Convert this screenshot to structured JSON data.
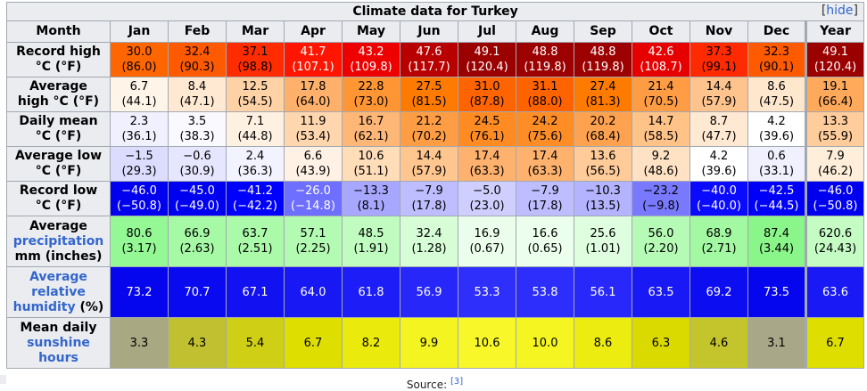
{
  "caption": "Climate data for Turkey",
  "hide_label": "hide",
  "months": [
    "Month",
    "Jan",
    "Feb",
    "Mar",
    "Apr",
    "May",
    "Jun",
    "Jul",
    "Aug",
    "Sep",
    "Oct",
    "Nov",
    "Dec",
    "Year"
  ],
  "rows": [
    {
      "label_lines": [
        "Record high",
        "°C (°F)"
      ],
      "label_link": "",
      "label_suffix": "",
      "values": [
        [
          "30.0",
          "(86.0)"
        ],
        [
          "32.4",
          "(90.3)"
        ],
        [
          "37.1",
          "(98.8)"
        ],
        [
          "41.7",
          "(107.1)"
        ],
        [
          "43.2",
          "(109.8)"
        ],
        [
          "47.6",
          "(117.7)"
        ],
        [
          "49.1",
          "(120.4)"
        ],
        [
          "48.8",
          "(119.8)"
        ],
        [
          "48.8",
          "(119.8)"
        ],
        [
          "42.6",
          "(108.7)"
        ],
        [
          "37.3",
          "(99.1)"
        ],
        [
          "32.3",
          "(90.1)"
        ],
        [
          "49.1",
          "(120.4)"
        ]
      ],
      "bg": [
        "#ff6600",
        "#ff5a00",
        "#ff2c00",
        "#ff1500",
        "#ee0000",
        "#b80000",
        "#9a0000",
        "#9c0000",
        "#9c0000",
        "#e60000",
        "#ff2a00",
        "#ff5a00",
        "#9a0000"
      ],
      "fg": [
        "#000000",
        "#000000",
        "#000000",
        "#ffffff",
        "#ffffff",
        "#ffffff",
        "#ffffff",
        "#ffffff",
        "#ffffff",
        "#ffffff",
        "#000000",
        "#000000",
        "#ffffff"
      ]
    },
    {
      "label_lines": [
        "Average",
        "high °C (°F)"
      ],
      "label_link": "",
      "label_suffix": "",
      "values": [
        [
          "6.7",
          "(44.1)"
        ],
        [
          "8.4",
          "(47.1)"
        ],
        [
          "12.5",
          "(54.5)"
        ],
        [
          "17.8",
          "(64.0)"
        ],
        [
          "22.8",
          "(73.0)"
        ],
        [
          "27.5",
          "(81.5)"
        ],
        [
          "31.0",
          "(87.8)"
        ],
        [
          "31.1",
          "(88.0)"
        ],
        [
          "27.4",
          "(81.3)"
        ],
        [
          "21.4",
          "(70.5)"
        ],
        [
          "14.4",
          "(57.9)"
        ],
        [
          "8.6",
          "(47.5)"
        ],
        [
          "19.1",
          "(66.4)"
        ]
      ],
      "bg": [
        "#fff4e8",
        "#ffe9d2",
        "#ffd2a5",
        "#ffb06a",
        "#ff9533",
        "#ff7a00",
        "#ff6400",
        "#ff6300",
        "#ff7b00",
        "#ff9c44",
        "#ffc48d",
        "#ffe7ce",
        "#ffa95b"
      ],
      "fg": [
        "#000000",
        "#000000",
        "#000000",
        "#000000",
        "#000000",
        "#000000",
        "#000000",
        "#000000",
        "#000000",
        "#000000",
        "#000000",
        "#000000",
        "#000000"
      ]
    },
    {
      "label_lines": [
        "Daily mean",
        "°C (°F)"
      ],
      "label_link": "",
      "label_suffix": "",
      "values": [
        [
          "2.3",
          "(36.1)"
        ],
        [
          "3.5",
          "(38.3)"
        ],
        [
          "7.1",
          "(44.8)"
        ],
        [
          "11.9",
          "(53.4)"
        ],
        [
          "16.7",
          "(62.1)"
        ],
        [
          "21.2",
          "(70.2)"
        ],
        [
          "24.5",
          "(76.1)"
        ],
        [
          "24.2",
          "(75.6)"
        ],
        [
          "20.2",
          "(68.4)"
        ],
        [
          "14.7",
          "(58.5)"
        ],
        [
          "8.7",
          "(47.7)"
        ],
        [
          "4.2",
          "(39.6)"
        ],
        [
          "13.3",
          "(55.9)"
        ]
      ],
      "bg": [
        "#f0f0ff",
        "#fafafe",
        "#fff1e2",
        "#ffd6ad",
        "#ffb777",
        "#ff9d44",
        "#ff8b22",
        "#ff8d26",
        "#ffa250",
        "#ffc287",
        "#ffe9d2",
        "#ffffff",
        "#ffcc9b"
      ],
      "fg": [
        "#000000",
        "#000000",
        "#000000",
        "#000000",
        "#000000",
        "#000000",
        "#000000",
        "#000000",
        "#000000",
        "#000000",
        "#000000",
        "#000000",
        "#000000"
      ]
    },
    {
      "label_lines": [
        "Average low",
        "°C (°F)"
      ],
      "label_link": "",
      "label_suffix": "",
      "values": [
        [
          "−1.5",
          "(29.3)"
        ],
        [
          "−0.6",
          "(30.9)"
        ],
        [
          "2.4",
          "(36.3)"
        ],
        [
          "6.6",
          "(43.9)"
        ],
        [
          "10.6",
          "(51.1)"
        ],
        [
          "14.4",
          "(57.9)"
        ],
        [
          "17.4",
          "(63.3)"
        ],
        [
          "17.4",
          "(63.3)"
        ],
        [
          "13.6",
          "(56.5)"
        ],
        [
          "9.2",
          "(48.6)"
        ],
        [
          "4.2",
          "(39.6)"
        ],
        [
          "0.6",
          "(33.1)"
        ],
        [
          "7.9",
          "(46.2)"
        ]
      ],
      "bg": [
        "#dcdcff",
        "#e6e6ff",
        "#f3f3ff",
        "#fff2e5",
        "#ffddb9",
        "#ffc68f",
        "#ffb16e",
        "#ffb16e",
        "#ffcb99",
        "#ffe2c4",
        "#ffffff",
        "#f0f0ff",
        "#ffeed9"
      ],
      "fg": [
        "#000000",
        "#000000",
        "#000000",
        "#000000",
        "#000000",
        "#000000",
        "#000000",
        "#000000",
        "#000000",
        "#000000",
        "#000000",
        "#000000",
        "#000000"
      ]
    },
    {
      "label_lines": [
        "Record low",
        "°C (°F)"
      ],
      "label_link": "",
      "label_suffix": "",
      "values": [
        [
          "−46.0",
          "(−50.8)"
        ],
        [
          "−45.0",
          "(−49.0)"
        ],
        [
          "−41.2",
          "(−42.2)"
        ],
        [
          "−26.0",
          "(−14.8)"
        ],
        [
          "−13.3",
          "(8.1)"
        ],
        [
          "−7.9",
          "(17.8)"
        ],
        [
          "−5.0",
          "(23.0)"
        ],
        [
          "−7.9",
          "(17.8)"
        ],
        [
          "−10.3",
          "(13.5)"
        ],
        [
          "−23.2",
          "(−9.8)"
        ],
        [
          "−40.0",
          "(−40.0)"
        ],
        [
          "−42.5",
          "(−44.5)"
        ],
        [
          "−46.0",
          "(−50.8)"
        ]
      ],
      "bg": [
        "#0000ee",
        "#0000f0",
        "#0000ff",
        "#6e6eff",
        "#a7a7ff",
        "#bdbdff",
        "#cfcfff",
        "#bdbdff",
        "#b3b3ff",
        "#7979ff",
        "#0a0aff",
        "#0000f8",
        "#0000ee"
      ],
      "fg": [
        "#ffffff",
        "#ffffff",
        "#ffffff",
        "#ffffff",
        "#000000",
        "#000000",
        "#000000",
        "#000000",
        "#000000",
        "#000000",
        "#ffffff",
        "#ffffff",
        "#ffffff"
      ]
    },
    {
      "label_lines": [
        "Average"
      ],
      "label_link": "precipitation",
      "label_suffix": "mm (inches)",
      "tall": true,
      "values": [
        [
          "80.6",
          "(3.17)"
        ],
        [
          "66.9",
          "(2.63)"
        ],
        [
          "63.7",
          "(2.51)"
        ],
        [
          "57.1",
          "(2.25)"
        ],
        [
          "48.5",
          "(1.91)"
        ],
        [
          "32.4",
          "(1.28)"
        ],
        [
          "16.9",
          "(0.67)"
        ],
        [
          "16.6",
          "(0.65)"
        ],
        [
          "25.6",
          "(1.01)"
        ],
        [
          "56.0",
          "(2.20)"
        ],
        [
          "68.9",
          "(2.71)"
        ],
        [
          "87.4",
          "(3.44)"
        ],
        [
          "620.6",
          "(24.43)"
        ]
      ],
      "bg": [
        "#94f894",
        "#a6faa6",
        "#aafaaa",
        "#b3fbb3",
        "#c0fcc0",
        "#d6fdd6",
        "#ebfeeb",
        "#ecfeec",
        "#dffddf",
        "#b5fbb5",
        "#a2f9a2",
        "#8af68a",
        "#c4fcc4"
      ],
      "fg": [
        "#000000",
        "#000000",
        "#000000",
        "#000000",
        "#000000",
        "#000000",
        "#000000",
        "#000000",
        "#000000",
        "#000000",
        "#000000",
        "#000000",
        "#000000"
      ]
    },
    {
      "label_lines": [],
      "label_link": "Average relative humidity",
      "label_suffix": "(%)",
      "tall": true,
      "values": [
        [
          "73.2"
        ],
        [
          "70.7"
        ],
        [
          "67.1"
        ],
        [
          "64.0"
        ],
        [
          "61.8"
        ],
        [
          "56.9"
        ],
        [
          "53.3"
        ],
        [
          "53.8"
        ],
        [
          "56.1"
        ],
        [
          "63.5"
        ],
        [
          "69.2"
        ],
        [
          "73.5"
        ],
        [
          "63.6"
        ]
      ],
      "bg": [
        "#0505ee",
        "#0a0af0",
        "#1111f2",
        "#1818f5",
        "#1d1df7",
        "#2727fa",
        "#2f2ffc",
        "#2e2efc",
        "#2828fa",
        "#1919f6",
        "#0d0df1",
        "#0505ee",
        "#1919f6"
      ],
      "fg": [
        "#ffffff",
        "#ffffff",
        "#ffffff",
        "#ffffff",
        "#ffffff",
        "#ffffff",
        "#ffffff",
        "#ffffff",
        "#ffffff",
        "#ffffff",
        "#ffffff",
        "#ffffff",
        "#ffffff"
      ]
    },
    {
      "label_lines": [
        "Mean daily"
      ],
      "label_link": "sunshine hours",
      "label_suffix": "",
      "tall": true,
      "values": [
        [
          "3.3"
        ],
        [
          "4.3"
        ],
        [
          "5.4"
        ],
        [
          "6.7"
        ],
        [
          "8.2"
        ],
        [
          "9.9"
        ],
        [
          "10.6"
        ],
        [
          "10.0"
        ],
        [
          "8.6"
        ],
        [
          "6.3"
        ],
        [
          "4.6"
        ],
        [
          "3.1"
        ],
        [
          "6.7"
        ]
      ],
      "bg": [
        "#a8a882",
        "#c0c030",
        "#cfcf16",
        "#dede00",
        "#eaea0d",
        "#f4f420",
        "#f7f72a",
        "#f5f522",
        "#ecec11",
        "#dada00",
        "#c4c42c",
        "#a8a888",
        "#dede00"
      ],
      "fg": [
        "#000000",
        "#000000",
        "#000000",
        "#000000",
        "#000000",
        "#000000",
        "#000000",
        "#000000",
        "#000000",
        "#000000",
        "#000000",
        "#000000",
        "#000000"
      ]
    }
  ],
  "source": {
    "label": "Source:",
    "ref": "[3]"
  }
}
